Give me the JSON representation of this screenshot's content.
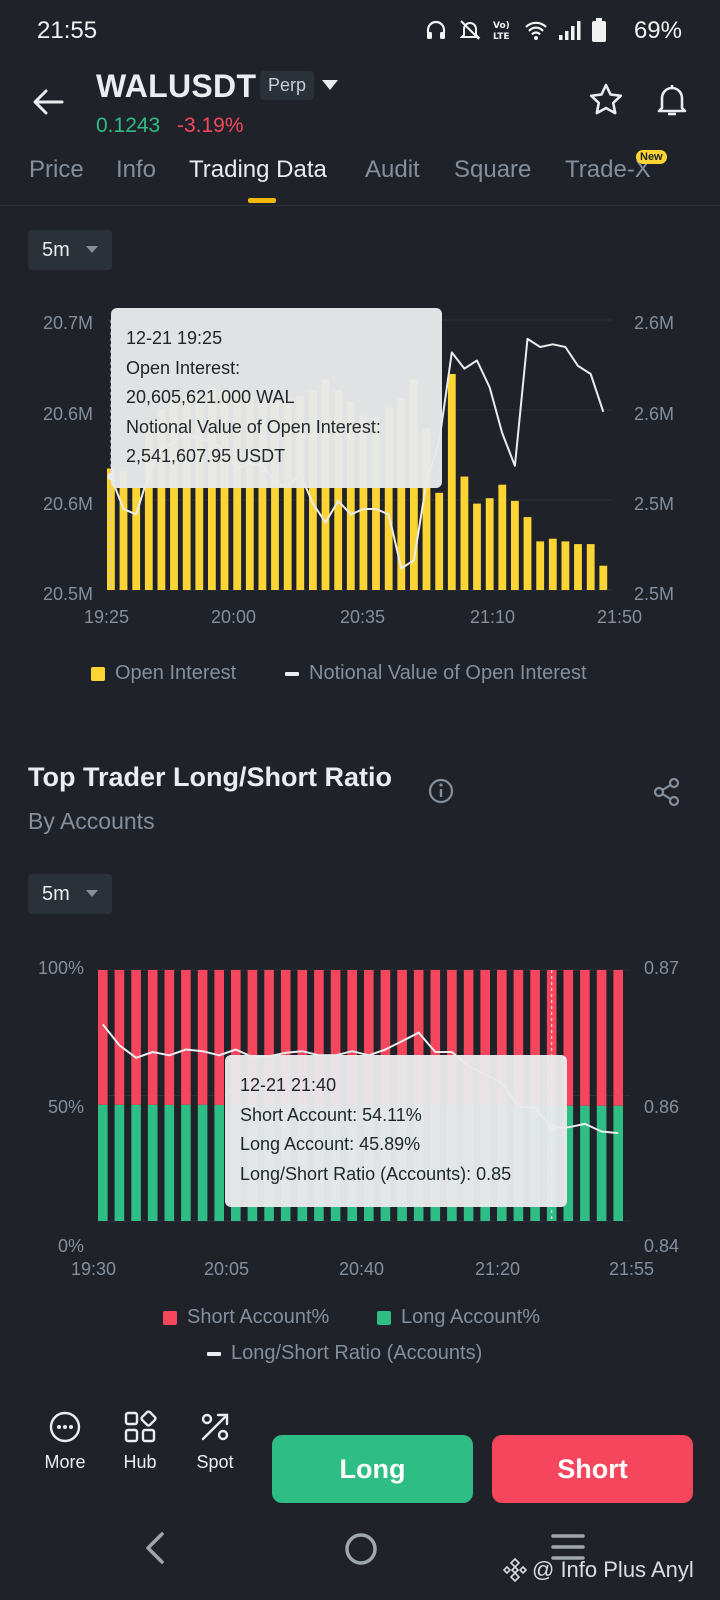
{
  "status_bar": {
    "time": "21:55",
    "battery": "69%"
  },
  "header": {
    "pair": "WALUSDT",
    "contract": "Perp",
    "price": "0.1243",
    "change": "-3.19%"
  },
  "tabs": [
    {
      "label": "Price"
    },
    {
      "label": "Info"
    },
    {
      "label": "Trading Data"
    },
    {
      "label": "Audit"
    },
    {
      "label": "Square"
    },
    {
      "label": "Trade-X"
    }
  ],
  "new_badge": "New",
  "interval_1": "5m",
  "interval_2": "5m",
  "colors": {
    "yellow": "#fcd535",
    "green": "#2ebd85",
    "red": "#f6465d",
    "bg": "#1f2329"
  },
  "chart_data": [
    {
      "type": "bar",
      "title": "",
      "x_ticks": [
        "19:25",
        "20:00",
        "20:35",
        "21:10",
        "21:50"
      ],
      "y_left_ticks": [
        "20.5M",
        "20.6M",
        "20.6M",
        "20.7M"
      ],
      "y_right_ticks": [
        "2.5M",
        "2.5M",
        "2.6M",
        "2.6M"
      ],
      "legend": [
        "Open Interest",
        "Notional Value of Open Interest"
      ],
      "series": [
        {
          "name": "Open Interest",
          "values": [
            0.45,
            0.44,
            0.38,
            0.62,
            0.67,
            0.7,
            0.72,
            0.72,
            0.75,
            0.74,
            0.73,
            0.72,
            0.72,
            0.7,
            0.71,
            0.72,
            0.74,
            0.78,
            0.74,
            0.7,
            0.65,
            0.64,
            0.68,
            0.71,
            0.78,
            0.6,
            0.36,
            0.8,
            0.42,
            0.32,
            0.34,
            0.39,
            0.33,
            0.27,
            0.18,
            0.19,
            0.18,
            0.17,
            0.17,
            0.09
          ]
        },
        {
          "name": "Notional Value of Open Interest",
          "values": [
            0.42,
            0.3,
            0.28,
            0.43,
            0.52,
            0.55,
            0.58,
            0.56,
            0.55,
            0.52,
            0.45,
            0.47,
            0.46,
            0.4,
            0.38,
            0.43,
            0.32,
            0.25,
            0.33,
            0.28,
            0.3,
            0.3,
            0.28,
            0.08,
            0.11,
            0.4,
            0.55,
            0.88,
            0.82,
            0.85,
            0.75,
            0.58,
            0.46,
            0.93,
            0.9,
            0.91,
            0.9,
            0.83,
            0.8,
            0.66
          ]
        }
      ],
      "tooltip": {
        "time": "12-21 19:25",
        "label_1": "Open Interest:",
        "value_1": "20,605,621.000 WAL",
        "label_2": "Notional Value of Open Interest:",
        "value_2": "2,541,607.95 USDT"
      }
    },
    {
      "type": "bar",
      "title": "Top Trader Long/Short Ratio",
      "subtitle": "By Accounts",
      "x_ticks": [
        "19:30",
        "20:05",
        "20:40",
        "21:20",
        "21:55"
      ],
      "y_left_ticks": [
        "0%",
        "50%",
        "100%"
      ],
      "y_right_ticks": [
        "0.84",
        "0.86",
        "0.87"
      ],
      "legend": [
        "Short Account%",
        "Long Account%",
        "Long/Short Ratio (Accounts)"
      ],
      "series": [
        {
          "name": "Long Account%",
          "values": [
            46.3,
            46.3,
            46.3,
            46.3,
            46.2,
            46.3,
            46.3,
            46.2,
            46.2,
            46.2,
            46.2,
            46.3,
            46.2,
            46.2,
            46.2,
            46.3,
            46.3,
            46.4,
            46.3,
            46.3,
            46.2,
            46.2,
            46.1,
            46.0,
            46.0,
            46.0,
            46.0,
            45.9,
            45.9,
            45.9,
            45.9,
            45.9
          ]
        },
        {
          "name": "Long/Short Ratio (Accounts)",
          "values": [
            0.8635,
            0.861,
            0.8595,
            0.8602,
            0.8598,
            0.8605,
            0.8603,
            0.8598,
            0.8605,
            0.8596,
            0.8597,
            0.8601,
            0.8603,
            0.8598,
            0.8598,
            0.8603,
            0.8598,
            0.8605,
            0.8615,
            0.8625,
            0.8602,
            0.8602,
            0.8585,
            0.8575,
            0.8565,
            0.8537,
            0.8535,
            0.8512,
            0.8512,
            0.8516,
            0.8507,
            0.8505
          ]
        }
      ],
      "tooltip": {
        "time": "12-21 21:40",
        "short": "Short Account: 54.11%",
        "long": "Long Account: 45.89%",
        "ratio": "Long/Short Ratio (Accounts): 0.85"
      }
    }
  ],
  "bottom_bar": {
    "more": "More",
    "hub": "Hub",
    "spot": "Spot",
    "long": "Long",
    "short": "Short"
  },
  "watermark": "@ Info Plus Anyl"
}
